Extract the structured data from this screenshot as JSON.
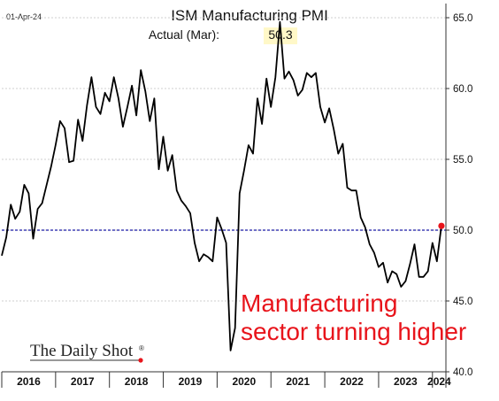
{
  "chart_data": {
    "type": "line",
    "date_label": "01-Apr-24",
    "title": "ISM Manufacturing PMI",
    "subtitle": {
      "prefix": "Actual (Mar):",
      "value": "50.3"
    },
    "ylim": [
      40,
      66
    ],
    "yticks": [
      "40.0",
      "45.0",
      "50.0",
      "55.0",
      "60.0",
      "65.0"
    ],
    "x_tick_labels": [
      "2016",
      "2017",
      "2018",
      "2019",
      "2020",
      "2021",
      "2022",
      "2023",
      "2024"
    ],
    "x_start": 2016.0,
    "x_end": 2024.25,
    "reference_line": {
      "value": 50.0,
      "color": "#1a1aa8",
      "style": "dashed"
    },
    "last_point_marker": {
      "color": "#e8141b"
    },
    "series": [
      {
        "color": "#000000",
        "x": [
          2016.0,
          2016.083,
          2016.167,
          2016.25,
          2016.333,
          2016.417,
          2016.5,
          2016.583,
          2016.667,
          2016.75,
          2016.833,
          2016.917,
          2017.0,
          2017.083,
          2017.167,
          2017.25,
          2017.333,
          2017.417,
          2017.5,
          2017.583,
          2017.667,
          2017.75,
          2017.833,
          2017.917,
          2018.0,
          2018.083,
          2018.167,
          2018.25,
          2018.333,
          2018.417,
          2018.5,
          2018.583,
          2018.667,
          2018.75,
          2018.833,
          2018.917,
          2019.0,
          2019.083,
          2019.167,
          2019.25,
          2019.333,
          2019.417,
          2019.5,
          2019.583,
          2019.667,
          2019.75,
          2019.833,
          2019.917,
          2020.0,
          2020.083,
          2020.167,
          2020.25,
          2020.333,
          2020.417,
          2020.5,
          2020.583,
          2020.667,
          2020.75,
          2020.833,
          2020.917,
          2021.0,
          2021.083,
          2021.167,
          2021.25,
          2021.333,
          2021.417,
          2021.5,
          2021.583,
          2021.667,
          2021.75,
          2021.833,
          2021.917,
          2022.0,
          2022.083,
          2022.167,
          2022.25,
          2022.333,
          2022.417,
          2022.5,
          2022.583,
          2022.667,
          2022.75,
          2022.833,
          2022.917,
          2023.0,
          2023.083,
          2023.167,
          2023.25,
          2023.333,
          2023.417,
          2023.5,
          2023.583,
          2023.667,
          2023.75,
          2023.833,
          2023.917,
          2024.0,
          2024.083,
          2024.167
        ],
        "values": [
          48.2,
          49.5,
          51.8,
          50.8,
          51.3,
          53.2,
          52.6,
          49.4,
          51.5,
          51.9,
          53.2,
          54.5,
          56.0,
          57.7,
          57.2,
          54.8,
          54.9,
          57.8,
          56.3,
          58.8,
          60.8,
          58.7,
          58.2,
          59.7,
          59.1,
          60.8,
          59.3,
          57.3,
          58.7,
          60.2,
          58.1,
          61.3,
          59.8,
          57.7,
          59.3,
          54.3,
          56.6,
          54.2,
          55.3,
          52.8,
          52.1,
          51.7,
          51.2,
          49.1,
          47.8,
          48.3,
          48.1,
          47.8,
          50.9,
          50.1,
          49.1,
          41.5,
          43.1,
          52.6,
          54.2,
          56.0,
          55.4,
          59.3,
          57.5,
          60.7,
          58.7,
          60.8,
          64.7,
          60.7,
          61.2,
          60.6,
          59.5,
          59.9,
          61.1,
          60.8,
          61.1,
          58.7,
          57.6,
          58.6,
          57.1,
          55.4,
          56.1,
          53.0,
          52.8,
          52.8,
          50.9,
          50.2,
          49.0,
          48.4,
          47.4,
          47.7,
          46.3,
          47.1,
          46.9,
          46.0,
          46.4,
          47.6,
          49.0,
          46.7,
          46.7,
          47.1,
          49.1,
          47.8,
          50.3
        ]
      }
    ],
    "annotation": {
      "line1": "Manufacturing",
      "line2": "sector turning higher"
    },
    "brand": {
      "name": "The Daily Shot",
      "mark": "®"
    }
  }
}
